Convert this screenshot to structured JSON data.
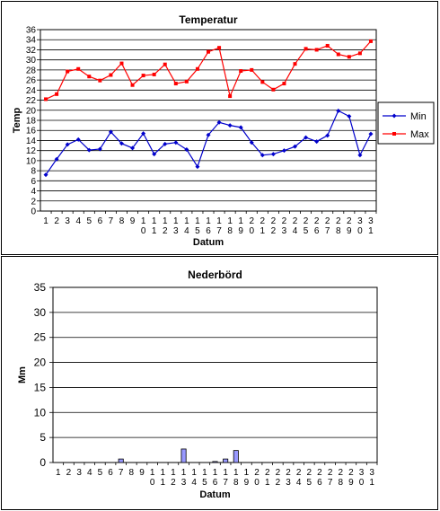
{
  "chart_data": [
    {
      "type": "line",
      "title": "Temperatur",
      "xlabel": "Datum",
      "ylabel": "Temp",
      "ylim": [
        0,
        36
      ],
      "yticks": [
        "0",
        "2",
        "4",
        "6",
        "8",
        "10",
        "12",
        "14",
        "16",
        "18",
        "20",
        "22",
        "24",
        "26",
        "28",
        "30",
        "32",
        "34",
        "36"
      ],
      "categories": [
        "1",
        "2",
        "3",
        "4",
        "5",
        "6",
        "7",
        "8",
        "9",
        "10",
        "11",
        "12",
        "13",
        "14",
        "15",
        "16",
        "17",
        "18",
        "19",
        "20",
        "21",
        "22",
        "23",
        "24",
        "25",
        "26",
        "27",
        "28",
        "29",
        "30",
        "31"
      ],
      "grid": true,
      "legend_position": "right",
      "series": [
        {
          "name": "Min",
          "color": "#0000cc",
          "marker": "diamond",
          "values": [
            7.2,
            10.3,
            13.2,
            14.2,
            12.1,
            12.3,
            15.7,
            13.4,
            12.5,
            15.4,
            11.3,
            13.3,
            13.6,
            12.2,
            8.8,
            15.1,
            17.6,
            17.0,
            16.6,
            13.6,
            11.1,
            11.3,
            12.0,
            12.8,
            14.6,
            13.8,
            15.0,
            19.9,
            18.8,
            11.1,
            15.3
          ]
        },
        {
          "name": "Max",
          "color": "#ff0000",
          "marker": "square",
          "values": [
            22.2,
            23.2,
            27.7,
            28.2,
            26.7,
            25.9,
            27.0,
            29.3,
            25.0,
            26.9,
            27.1,
            29.1,
            25.3,
            25.7,
            28.2,
            31.6,
            32.4,
            22.8,
            27.8,
            28.0,
            25.6,
            24.1,
            25.3,
            29.2,
            32.2,
            32.0,
            32.8,
            31.1,
            30.6,
            31.3,
            33.7
          ]
        }
      ]
    },
    {
      "type": "bar",
      "title": "Nederbörd",
      "xlabel": "Datum",
      "ylabel": "Mm",
      "ylim": [
        0,
        35
      ],
      "yticks": [
        "0",
        "5",
        "10",
        "15",
        "20",
        "25",
        "30",
        "35"
      ],
      "categories": [
        "1",
        "2",
        "3",
        "4",
        "5",
        "6",
        "7",
        "8",
        "9",
        "10",
        "11",
        "12",
        "13",
        "14",
        "15",
        "16",
        "17",
        "18",
        "19",
        "20",
        "21",
        "22",
        "23",
        "24",
        "25",
        "26",
        "27",
        "28",
        "29",
        "30",
        "31"
      ],
      "grid": true,
      "bar_color": "#9999ff",
      "series": [
        {
          "name": "",
          "values": [
            0,
            0,
            0,
            0,
            0,
            0,
            0.7,
            0,
            0,
            0,
            0,
            0,
            2.7,
            0,
            0,
            0.2,
            0.7,
            2.4,
            0,
            0,
            0,
            0,
            0,
            0,
            0,
            0,
            0,
            0,
            0,
            0,
            0
          ]
        }
      ]
    }
  ]
}
